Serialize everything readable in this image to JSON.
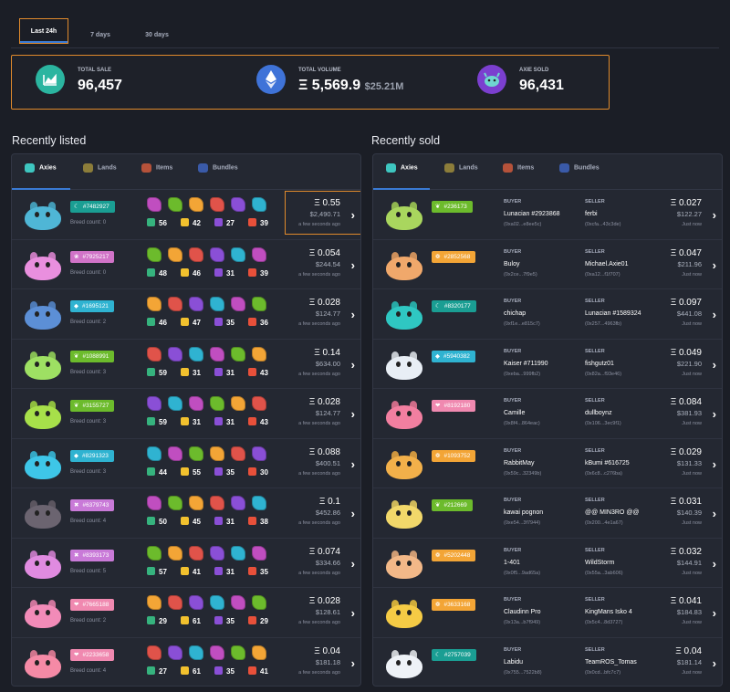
{
  "period_tabs": [
    "Last 24h",
    "7 days",
    "30 days"
  ],
  "stats": [
    {
      "label": "TOTAL SALE",
      "value": "96,457",
      "sub": "",
      "icon": "chart-icon",
      "color": "#2bb5a0"
    },
    {
      "label": "TOTAL VOLUME",
      "value": "Ξ 5,569.9",
      "sub": "$25.21M",
      "icon": "ethereum-icon",
      "color": "#3f73d8"
    },
    {
      "label": "AXIE SOLD",
      "value": "96,431",
      "sub": "",
      "icon": "axie-icon",
      "color": "#7b3fcf"
    }
  ],
  "recently_listed": {
    "title": "Recently listed",
    "tabs": [
      "Axies",
      "Lands",
      "Items",
      "Bundles"
    ],
    "rows": [
      {
        "id": "#7482927",
        "cls_color": "#1a9e93",
        "cls_icon": "☾",
        "breed": "Breed count: 0",
        "stats": [
          "56",
          "42",
          "27",
          "39"
        ],
        "eth": "Ξ 0.55",
        "usd": "$2,490.71",
        "time": "a few seconds ago",
        "body": "#4fb6d6"
      },
      {
        "id": "#7925217",
        "cls_color": "#d173c8",
        "cls_icon": "❀",
        "breed": "Breed count: 0",
        "stats": [
          "48",
          "46",
          "31",
          "39"
        ],
        "eth": "Ξ 0.054",
        "usd": "$244.54",
        "time": "a few seconds ago",
        "body": "#e98fde"
      },
      {
        "id": "#1695121",
        "cls_color": "#2fb3d1",
        "cls_icon": "◆",
        "breed": "Breed count: 2",
        "stats": [
          "46",
          "47",
          "35",
          "36"
        ],
        "eth": "Ξ 0.028",
        "usd": "$124.77",
        "time": "a few seconds ago",
        "body": "#5c8fd6"
      },
      {
        "id": "#1088991",
        "cls_color": "#6cbb2c",
        "cls_icon": "❦",
        "breed": "Breed count: 3",
        "stats": [
          "59",
          "31",
          "31",
          "43"
        ],
        "eth": "Ξ 0.14",
        "usd": "$634.00",
        "time": "a few seconds ago",
        "body": "#9ee063"
      },
      {
        "id": "#3155727",
        "cls_color": "#6cbb2c",
        "cls_icon": "❦",
        "breed": "Breed count: 3",
        "stats": [
          "59",
          "31",
          "31",
          "43"
        ],
        "eth": "Ξ 0.028",
        "usd": "$124.77",
        "time": "a few seconds ago",
        "body": "#a7e04a"
      },
      {
        "id": "#8291323",
        "cls_color": "#2fb3d1",
        "cls_icon": "◆",
        "breed": "Breed count: 3",
        "stats": [
          "44",
          "55",
          "35",
          "30"
        ],
        "eth": "Ξ 0.088",
        "usd": "$400.51",
        "time": "a few seconds ago",
        "body": "#3ec6e8"
      },
      {
        "id": "#6379743",
        "cls_color": "#c97ad8",
        "cls_icon": "✖",
        "breed": "Breed count: 4",
        "stats": [
          "50",
          "45",
          "31",
          "38"
        ],
        "eth": "Ξ 0.1",
        "usd": "$452.86",
        "time": "a few seconds ago",
        "body": "#6b6470"
      },
      {
        "id": "#8393173",
        "cls_color": "#c97ad8",
        "cls_icon": "✖",
        "breed": "Breed count: 5",
        "stats": [
          "57",
          "41",
          "31",
          "35"
        ],
        "eth": "Ξ 0.074",
        "usd": "$334.66",
        "time": "a few seconds ago",
        "body": "#e08be0"
      },
      {
        "id": "#7665188",
        "cls_color": "#f089b0",
        "cls_icon": "❤",
        "breed": "Breed count: 2",
        "stats": [
          "29",
          "61",
          "35",
          "29"
        ],
        "eth": "Ξ 0.028",
        "usd": "$128.61",
        "time": "a few seconds ago",
        "body": "#f28bb8"
      },
      {
        "id": "#2233658",
        "cls_color": "#f089b0",
        "cls_icon": "❤",
        "breed": "Breed count: 4",
        "stats": [
          "27",
          "61",
          "35",
          "41"
        ],
        "eth": "Ξ 0.04",
        "usd": "$181.18",
        "time": "a few seconds ago",
        "body": "#f58aa6"
      }
    ]
  },
  "recently_sold": {
    "title": "Recently sold",
    "tabs": [
      "Axies",
      "Lands",
      "Items",
      "Bundles"
    ],
    "buyer_label": "BUYER",
    "seller_label": "SELLER",
    "rows": [
      {
        "id": "#236173",
        "cls_color": "#6cbb2c",
        "cls_icon": "❦",
        "buyer": "Lunacian #2923868",
        "buyer_addr": "(0xa02...e8ee5c)",
        "seller": "ferbi",
        "seller_addr": "(0xcfa...43c3de)",
        "eth": "Ξ 0.027",
        "usd": "$122.27",
        "time": "Just now",
        "body": "#a9d65e"
      },
      {
        "id": "#2852568",
        "cls_color": "#f3a536",
        "cls_icon": "❁",
        "buyer": "Buloy",
        "buyer_addr": "(0x2ce...7f9e5)",
        "seller": "Michael.Axie01",
        "seller_addr": "(0xa12...f1f707)",
        "eth": "Ξ 0.047",
        "usd": "$211.96",
        "time": "Just now",
        "body": "#f0a86b"
      },
      {
        "id": "#8320177",
        "cls_color": "#1a9e93",
        "cls_icon": "☾",
        "buyer": "chichap",
        "buyer_addr": "(0xf1e...e815c7)",
        "seller": "Lunacian #1589324",
        "seller_addr": "(0x257...4963fb)",
        "eth": "Ξ 0.097",
        "usd": "$441.08",
        "time": "Just now",
        "body": "#2fc7c2"
      },
      {
        "id": "#5940382",
        "cls_color": "#2fb3d1",
        "cls_icon": "◆",
        "buyer": "Kaiser #711990",
        "buyer_addr": "(0xeba...999fb2)",
        "seller": "fishgutz01",
        "seller_addr": "(0x82a...f93e46)",
        "eth": "Ξ 0.049",
        "usd": "$221.90",
        "time": "Just now",
        "body": "#e8eef5"
      },
      {
        "id": "#8192180",
        "cls_color": "#f089b0",
        "cls_icon": "❤",
        "buyer": "Camille",
        "buyer_addr": "(0x8f4...864eac)",
        "seller": "dullboynz",
        "seller_addr": "(0x106...3ec9f1)",
        "eth": "Ξ 0.084",
        "usd": "$381.93",
        "time": "Just now",
        "body": "#f27fa0"
      },
      {
        "id": "#1093752",
        "cls_color": "#f3a536",
        "cls_icon": "❁",
        "buyer": "RabbitMay",
        "buyer_addr": "(0x59c...32349b)",
        "seller": "kBumi #616725",
        "seller_addr": "(0x6c8...c276ba)",
        "eth": "Ξ 0.029",
        "usd": "$131.33",
        "time": "Just now",
        "body": "#f2b04a"
      },
      {
        "id": "#212669",
        "cls_color": "#6cbb2c",
        "cls_icon": "❦",
        "buyer": "kawai pognon",
        "buyer_addr": "(0xe54...3f7944)",
        "seller": "@@ MIN3RO @@",
        "seller_addr": "(0x200...4e1a67)",
        "eth": "Ξ 0.031",
        "usd": "$140.39",
        "time": "Just now",
        "body": "#f2d86a"
      },
      {
        "id": "#5202448",
        "cls_color": "#f3a536",
        "cls_icon": "❁",
        "buyer": "1-401",
        "buyer_addr": "(0x0f5...9ad65a)",
        "seller": "WildStorm",
        "seller_addr": "(0x55a...3ab606)",
        "eth": "Ξ 0.032",
        "usd": "$144.91",
        "time": "Just now",
        "body": "#f2b888"
      },
      {
        "id": "#3633168",
        "cls_color": "#f3a536",
        "cls_icon": "❁",
        "buyer": "Claudinn Pro",
        "buyer_addr": "(0x13a...b7f949)",
        "seller": "KingMans Isko 4",
        "seller_addr": "(0x5c4...8d3727)",
        "eth": "Ξ 0.041",
        "usd": "$184.83",
        "time": "Just now",
        "body": "#f5cb45"
      },
      {
        "id": "#2757039",
        "cls_color": "#1a9e93",
        "cls_icon": "☾",
        "buyer": "Labidu",
        "buyer_addr": "(0x755...7522b8)",
        "seller": "TeamROS_Tomas",
        "seller_addr": "(0x0cd...bfc7c7)",
        "eth": "Ξ 0.04",
        "usd": "$181.14",
        "time": "Just now",
        "body": "#eef2f7"
      }
    ]
  },
  "colors": {
    "accent": "#3a7bd5",
    "highlight": "#e08a2c",
    "hp": "#36b37e",
    "speed": "#f2c12e",
    "skill": "#8a4fd6",
    "morale": "#e8503a"
  }
}
